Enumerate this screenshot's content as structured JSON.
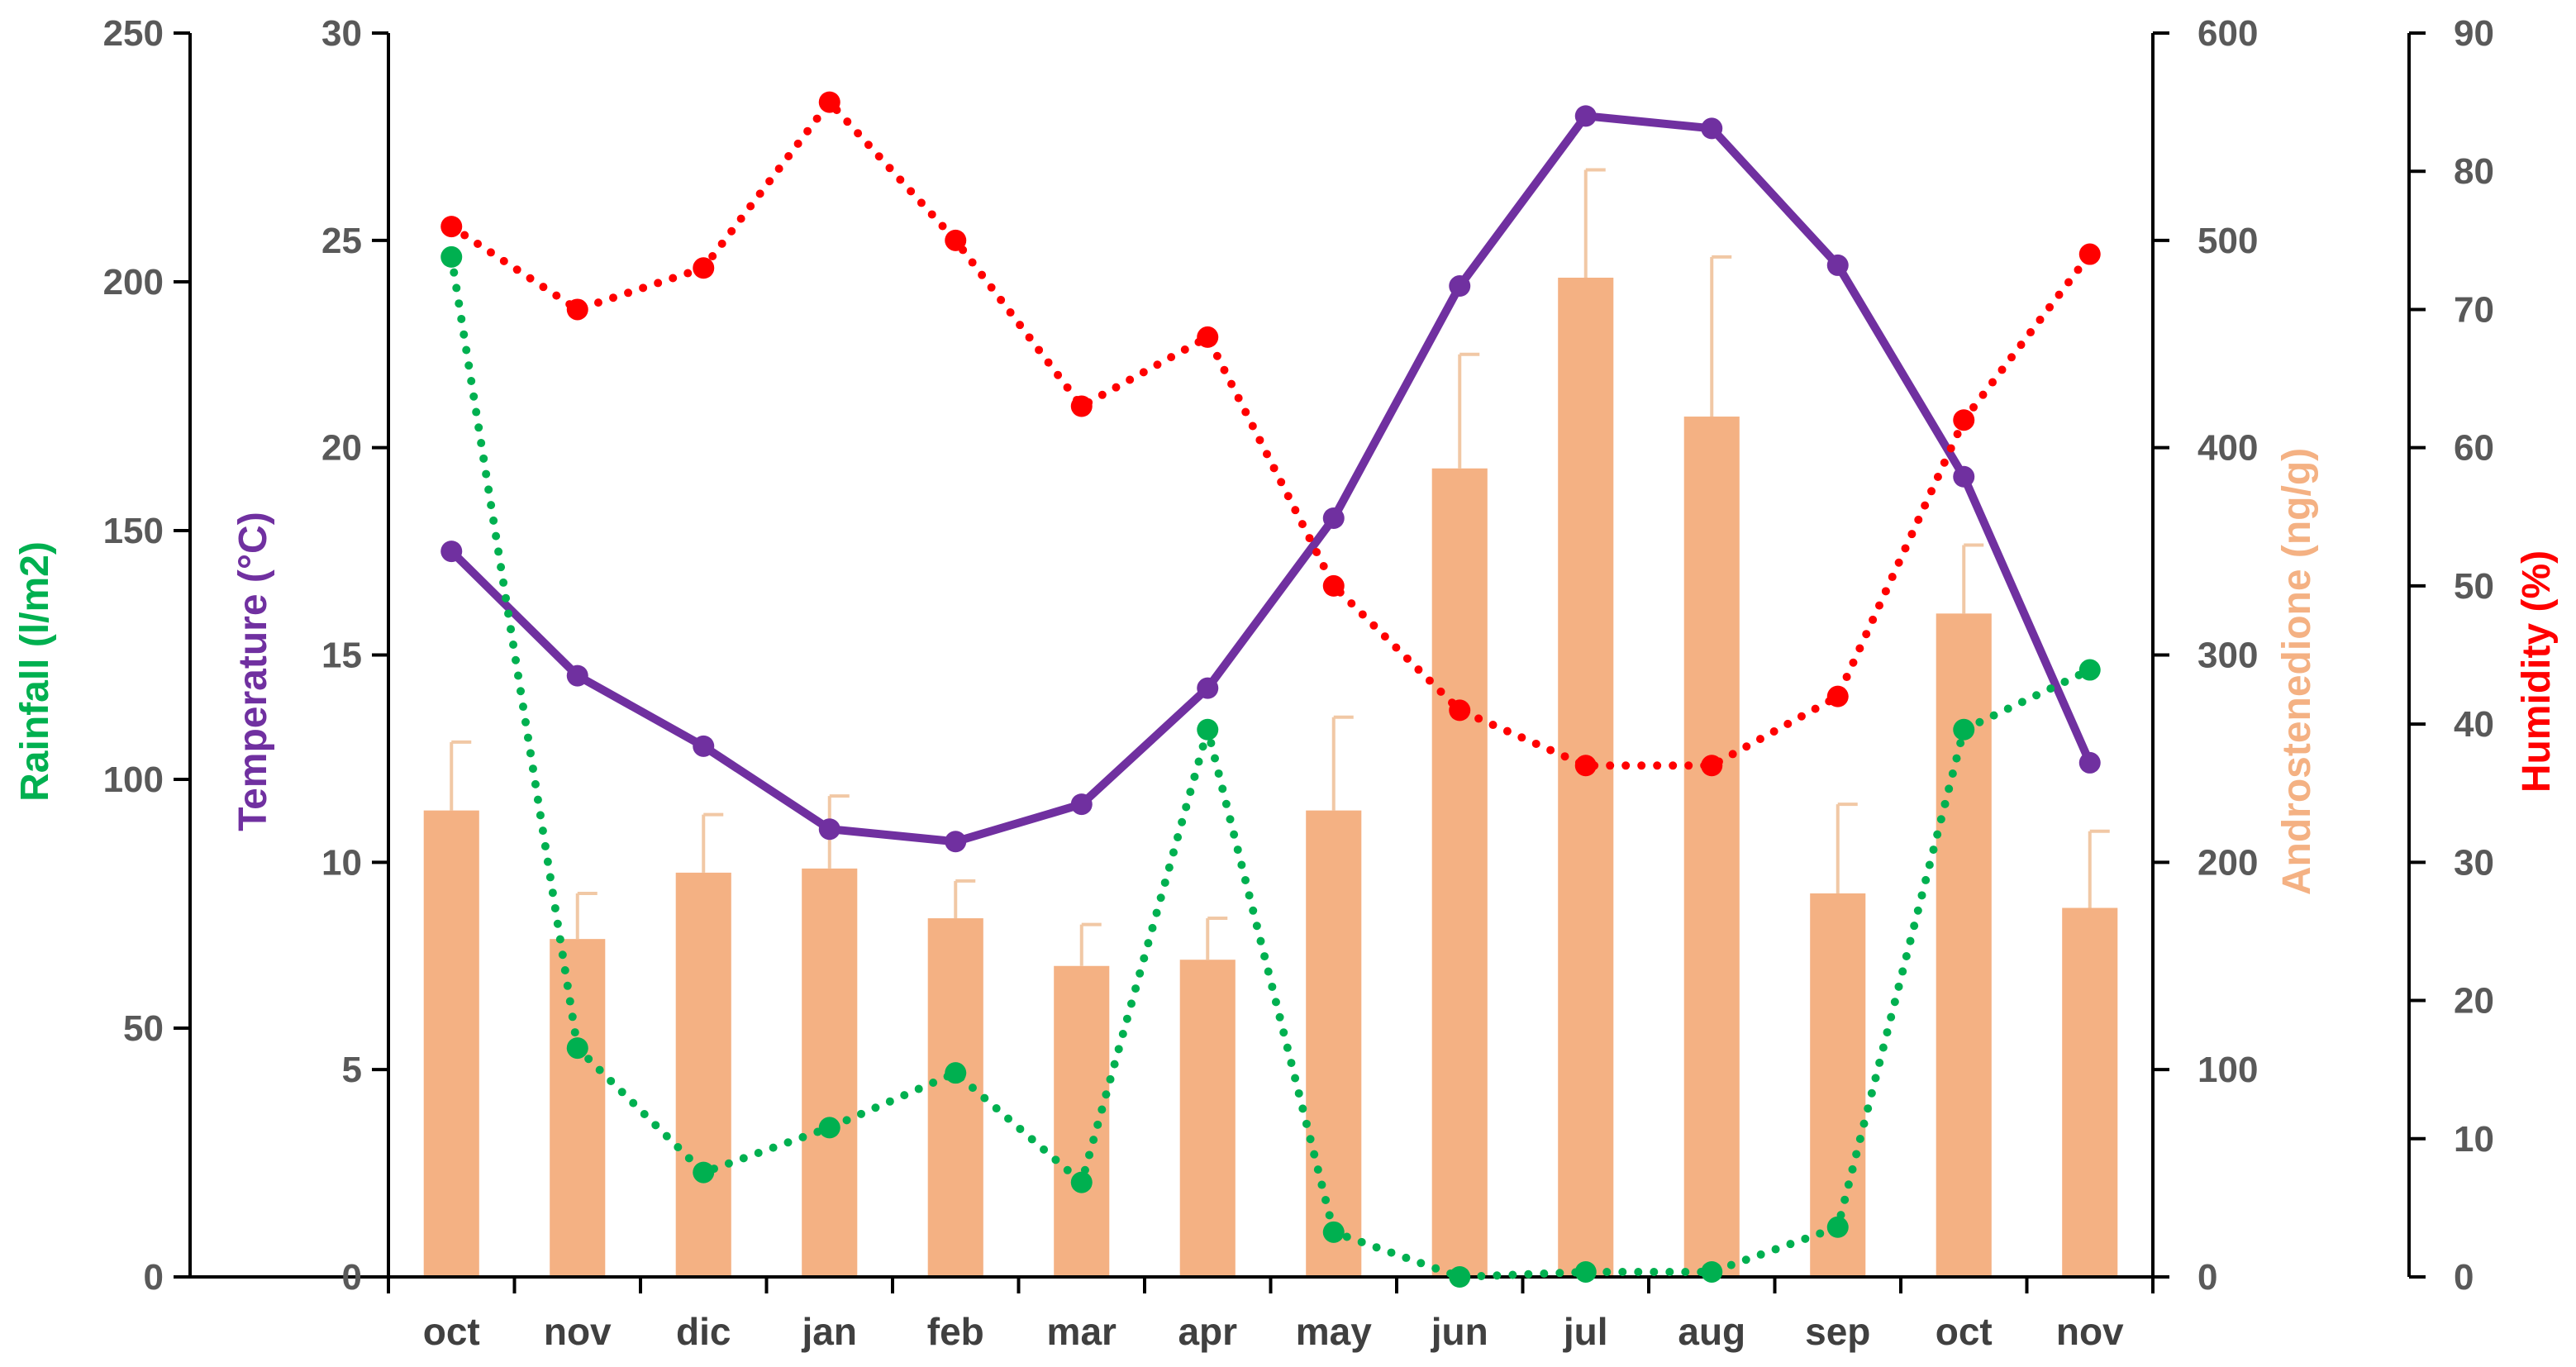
{
  "chart_data": {
    "type": "bar+line",
    "categories": [
      "oct",
      "nov",
      "dic",
      "jan",
      "feb",
      "mar",
      "apr",
      "may",
      "jun",
      "jul",
      "aug",
      "sep",
      "oct",
      "nov"
    ],
    "axes": {
      "rainfall": {
        "label": "Rainfall (l/m2)",
        "range": [
          0,
          250
        ],
        "ticks": [
          0,
          50,
          100,
          150,
          200,
          250
        ],
        "color": "#00b050"
      },
      "temperature": {
        "label": "Temperature (°C)",
        "range": [
          0,
          30
        ],
        "ticks": [
          0,
          5,
          10,
          15,
          20,
          25,
          30
        ],
        "color": "#7030a0"
      },
      "androstenedione": {
        "label": "Androstenedione  (ng/g)",
        "range": [
          0,
          600
        ],
        "ticks": [
          0,
          100,
          200,
          300,
          400,
          500,
          600
        ],
        "color": "#f4b183"
      },
      "humidity": {
        "label": "Humidity (%)",
        "range": [
          0,
          90
        ],
        "ticks": [
          0,
          10,
          20,
          30,
          40,
          50,
          60,
          70,
          80,
          90
        ],
        "color": "#ff0000"
      }
    },
    "series": [
      {
        "name": "Androstenedione",
        "kind": "bar",
        "axis": "androstenedione",
        "color": "#f4b183",
        "values": [
          225,
          163,
          195,
          197,
          173,
          150,
          153,
          225,
          390,
          482,
          415,
          185,
          320,
          178
        ],
        "errors": [
          33,
          22,
          28,
          35,
          18,
          20,
          20,
          45,
          55,
          52,
          77,
          43,
          33,
          37
        ]
      },
      {
        "name": "Temperature",
        "kind": "line",
        "axis": "temperature",
        "color": "#7030a0",
        "values": [
          17.5,
          14.5,
          12.8,
          10.8,
          10.5,
          11.4,
          14.2,
          18.3,
          23.9,
          28.0,
          27.7,
          24.4,
          19.3,
          12.4
        ]
      },
      {
        "name": "Humidity",
        "kind": "dotted-line",
        "axis": "humidity",
        "color": "#ff0000",
        "values": [
          76,
          70,
          73,
          85,
          75,
          63,
          68,
          50,
          41,
          37,
          37,
          42,
          62,
          74
        ]
      },
      {
        "name": "Rainfall",
        "kind": "dotted-line",
        "axis": "rainfall",
        "color": "#00b050",
        "values": [
          205,
          46,
          21,
          30,
          41,
          19,
          110,
          9,
          0,
          1,
          1,
          10,
          110,
          122
        ]
      }
    ]
  }
}
